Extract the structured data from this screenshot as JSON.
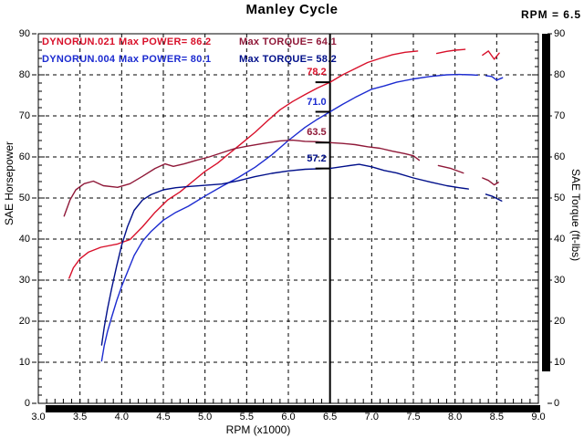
{
  "title": "Manley Cycle",
  "cursor": {
    "label": "RPM = 6.5",
    "rpm": 6.5
  },
  "axes": {
    "left_title": "SAE Horsepower",
    "right_title": "SAE Torque (ft-lbs)",
    "bottom_title": "RPM (x1000)",
    "y_ticks": [
      "90",
      "80",
      "70",
      "60",
      "50",
      "40",
      "30",
      "20",
      "10",
      "0"
    ],
    "x_ticks": [
      "3.0",
      "3.5",
      "4.0",
      "4.5",
      "5.0",
      "5.5",
      "6.0",
      "6.5",
      "7.0",
      "7.5",
      "8.0",
      "8.5",
      "9.0"
    ]
  },
  "legend": {
    "runs": [
      {
        "file": "DYNORUN.021",
        "power": "Max POWER= 86.2",
        "torque": "Max TORQUE= 64.1",
        "power_color": "#d8102a",
        "torque_color": "#8f1838"
      },
      {
        "file": "DYNORUN.004",
        "power": "Max POWER= 80.1",
        "torque": "Max TORQUE= 58.2",
        "power_color": "#1c2bd0",
        "torque_color": "#000f8a"
      }
    ]
  },
  "annotations": [
    {
      "text": "78.2",
      "value": 78.2,
      "color": "#d8102a"
    },
    {
      "text": "71.0",
      "value": 71.0,
      "color": "#1c2bd0"
    },
    {
      "text": "63.5",
      "value": 63.5,
      "color": "#8f1838"
    },
    {
      "text": "57.2",
      "value": 57.2,
      "color": "#000f8a"
    }
  ],
  "chart_data": {
    "type": "line",
    "xlabel": "RPM (x1000)",
    "ylabel_left": "SAE Horsepower",
    "ylabel_right": "SAE Torque (ft-lbs)",
    "xlim": [
      3.0,
      9.0
    ],
    "ylim": [
      0,
      90
    ],
    "x_grid_step": 0.5,
    "y_grid_step": 10,
    "grid": "dashed",
    "cursor_rpm": 6.5,
    "series": [
      {
        "name": "DYNORUN.021 Power (SAE HP)",
        "color": "#d8102a",
        "max": 86.2,
        "segments": [
          [
            [
              3.37,
              30.5
            ],
            [
              3.42,
              33.0
            ],
            [
              3.5,
              35.2
            ],
            [
              3.6,
              36.8
            ],
            [
              3.75,
              38.0
            ],
            [
              3.95,
              38.8
            ],
            [
              4.1,
              39.9
            ],
            [
              4.25,
              43.0
            ],
            [
              4.4,
              46.5
            ],
            [
              4.55,
              49.5
            ],
            [
              4.7,
              51.5
            ],
            [
              4.85,
              54.0
            ],
            [
              5.0,
              56.5
            ],
            [
              5.15,
              58.5
            ],
            [
              5.3,
              61.0
            ],
            [
              5.45,
              63.5
            ],
            [
              5.6,
              66.0
            ],
            [
              5.75,
              68.8
            ],
            [
              5.9,
              71.5
            ],
            [
              6.05,
              73.5
            ],
            [
              6.2,
              75.2
            ],
            [
              6.35,
              76.8
            ],
            [
              6.5,
              78.2
            ],
            [
              6.65,
              80.0
            ],
            [
              6.8,
              81.5
            ],
            [
              6.95,
              83.0
            ],
            [
              7.1,
              84.0
            ],
            [
              7.25,
              84.9
            ],
            [
              7.4,
              85.5
            ],
            [
              7.55,
              85.8
            ]
          ],
          [
            [
              7.78,
              85.2
            ],
            [
              7.9,
              85.7
            ],
            [
              8.0,
              86.0
            ],
            [
              8.12,
              86.2
            ]
          ],
          [
            [
              8.33,
              84.8
            ],
            [
              8.4,
              85.8
            ],
            [
              8.47,
              83.8
            ],
            [
              8.53,
              85.3
            ]
          ]
        ]
      },
      {
        "name": "DYNORUN.004 Power (SAE HP)",
        "color": "#1c2bd0",
        "max": 80.1,
        "segments": [
          [
            [
              3.76,
              10.3
            ],
            [
              3.79,
              14.0
            ],
            [
              3.83,
              17.5
            ],
            [
              3.88,
              21.0
            ],
            [
              3.94,
              25.0
            ],
            [
              4.0,
              28.5
            ],
            [
              4.07,
              32.0
            ],
            [
              4.15,
              36.0
            ],
            [
              4.25,
              39.5
            ],
            [
              4.35,
              41.8
            ],
            [
              4.5,
              44.6
            ],
            [
              4.65,
              46.5
            ],
            [
              4.8,
              48.0
            ],
            [
              5.0,
              50.5
            ],
            [
              5.2,
              52.8
            ],
            [
              5.4,
              55.0
            ],
            [
              5.6,
              57.5
            ],
            [
              5.8,
              60.5
            ],
            [
              6.0,
              64.0
            ],
            [
              6.2,
              67.2
            ],
            [
              6.35,
              69.2
            ],
            [
              6.5,
              71.0
            ],
            [
              6.65,
              72.8
            ],
            [
              6.8,
              74.5
            ],
            [
              7.0,
              76.5
            ],
            [
              7.15,
              77.3
            ],
            [
              7.3,
              78.2
            ],
            [
              7.5,
              79.0
            ],
            [
              7.7,
              79.6
            ],
            [
              7.9,
              80.0
            ],
            [
              8.05,
              80.1
            ],
            [
              8.2,
              80.0
            ],
            [
              8.27,
              79.9
            ]
          ],
          [
            [
              8.37,
              79.8
            ],
            [
              8.44,
              79.6
            ],
            [
              8.5,
              78.7
            ],
            [
              8.57,
              79.3
            ]
          ]
        ]
      },
      {
        "name": "DYNORUN.021 Torque (ft-lbs)",
        "color": "#8f1838",
        "max": 64.1,
        "segments": [
          [
            [
              3.31,
              45.6
            ],
            [
              3.38,
              49.5
            ],
            [
              3.45,
              52.0
            ],
            [
              3.55,
              53.5
            ],
            [
              3.66,
              54.1
            ],
            [
              3.78,
              53.0
            ],
            [
              3.95,
              52.6
            ],
            [
              4.1,
              53.5
            ],
            [
              4.25,
              55.3
            ],
            [
              4.4,
              57.2
            ],
            [
              4.52,
              58.3
            ],
            [
              4.62,
              57.7
            ],
            [
              4.75,
              58.3
            ],
            [
              4.9,
              59.2
            ],
            [
              5.05,
              60.0
            ],
            [
              5.2,
              61.0
            ],
            [
              5.35,
              62.0
            ],
            [
              5.5,
              62.6
            ],
            [
              5.7,
              63.3
            ],
            [
              5.9,
              63.9
            ],
            [
              6.05,
              64.1
            ],
            [
              6.2,
              63.8
            ],
            [
              6.35,
              63.7
            ],
            [
              6.5,
              63.5
            ],
            [
              6.65,
              63.3
            ],
            [
              6.8,
              63.0
            ],
            [
              6.95,
              62.5
            ],
            [
              7.1,
              62.1
            ],
            [
              7.25,
              61.4
            ],
            [
              7.4,
              60.8
            ],
            [
              7.5,
              60.3
            ],
            [
              7.57,
              59.2
            ]
          ],
          [
            [
              7.8,
              57.9
            ],
            [
              7.95,
              57.2
            ],
            [
              8.1,
              56.1
            ]
          ],
          [
            [
              8.33,
              54.9
            ],
            [
              8.4,
              54.3
            ],
            [
              8.47,
              53.2
            ],
            [
              8.52,
              53.8
            ]
          ]
        ]
      },
      {
        "name": "DYNORUN.004 Torque (ft-lbs)",
        "color": "#000f8a",
        "max": 58.2,
        "segments": [
          [
            [
              3.76,
              14.2
            ],
            [
              3.79,
              18.5
            ],
            [
              3.83,
              23.0
            ],
            [
              3.88,
              28.0
            ],
            [
              3.94,
              33.5
            ],
            [
              4.0,
              38.5
            ],
            [
              4.07,
              43.0
            ],
            [
              4.15,
              47.0
            ],
            [
              4.25,
              49.5
            ],
            [
              4.35,
              50.8
            ],
            [
              4.5,
              52.0
            ],
            [
              4.65,
              52.5
            ],
            [
              4.8,
              52.8
            ],
            [
              5.0,
              53.1
            ],
            [
              5.2,
              53.4
            ],
            [
              5.4,
              54.2
            ],
            [
              5.6,
              55.2
            ],
            [
              5.8,
              56.0
            ],
            [
              6.0,
              56.6
            ],
            [
              6.2,
              57.0
            ],
            [
              6.5,
              57.2
            ],
            [
              6.7,
              57.8
            ],
            [
              6.85,
              58.2
            ],
            [
              7.0,
              57.6
            ],
            [
              7.15,
              56.7
            ],
            [
              7.3,
              56.1
            ],
            [
              7.5,
              54.9
            ],
            [
              7.7,
              53.9
            ],
            [
              7.9,
              53.0
            ],
            [
              8.05,
              52.5
            ],
            [
              8.16,
              52.2
            ]
          ],
          [
            [
              8.37,
              50.9
            ],
            [
              8.45,
              50.4
            ],
            [
              8.56,
              49.3
            ]
          ]
        ]
      }
    ]
  }
}
